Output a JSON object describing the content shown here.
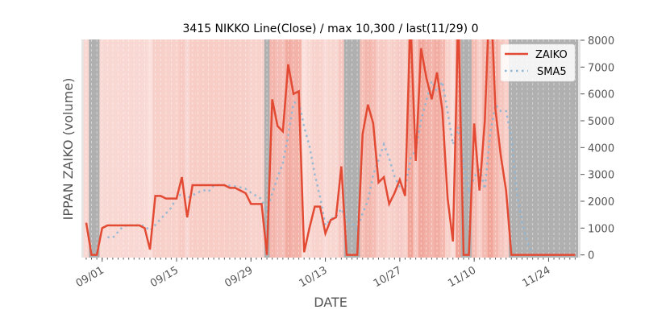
{
  "chart_data": {
    "type": "line",
    "title": "3415 NIKKO Line(Close) / max 10,300 / last(11/29) 0",
    "xlabel": "DATE",
    "ylabel": "IPPAN ZAIKO (volume)",
    "start_date": "08/29",
    "x_unit": "days since 09/01",
    "xlim": [
      -3.9,
      90
    ],
    "ylim": [
      -100,
      8030
    ],
    "yticks": [
      0,
      1000,
      2000,
      3000,
      4000,
      5000,
      6000,
      7000,
      8000
    ],
    "xticks": [
      {
        "day": 0,
        "label": "09/01"
      },
      {
        "day": 14,
        "label": "09/15"
      },
      {
        "day": 28,
        "label": "09/29"
      },
      {
        "day": 42,
        "label": "10/13"
      },
      {
        "day": 56,
        "label": "10/27"
      },
      {
        "day": 70,
        "label": "11/10"
      },
      {
        "day": 84,
        "label": "11/24"
      }
    ],
    "legend": {
      "placement": "top-right",
      "entries": [
        "ZAIKO",
        "SMA5"
      ]
    },
    "series": [
      {
        "name": "ZAIKO",
        "color": "#e24a33",
        "style": "solid",
        "values": [
          1200,
          0,
          0,
          1000,
          1100,
          1100,
          1100,
          1100,
          1100,
          1100,
          1100,
          1000,
          200,
          2200,
          2200,
          2100,
          2100,
          2100,
          2900,
          1400,
          2600,
          2600,
          2600,
          2600,
          2600,
          2600,
          2600,
          2500,
          2500,
          2400,
          2300,
          1900,
          1900,
          1900,
          0,
          5800,
          4800,
          4600,
          7100,
          6000,
          6100,
          100,
          1000,
          1800,
          1800,
          800,
          1300,
          1400,
          3300,
          0,
          0,
          0,
          4500,
          5600,
          4900,
          2700,
          2900,
          1900,
          2300,
          2800,
          2200,
          8800,
          3500,
          7700,
          6600,
          5800,
          6800,
          5400,
          2100,
          500,
          9000,
          0,
          0,
          4900,
          2400,
          5000,
          10300,
          5400,
          3700,
          2400,
          0,
          0,
          0,
          0,
          0,
          0,
          0,
          0,
          0,
          0,
          0,
          0,
          0
        ]
      },
      {
        "name": "SMA5",
        "color": "#8fb6d4",
        "style": "dotted",
        "window": 5
      }
    ],
    "band_colors": {
      "zero": "#b0b0b0",
      "base": "#e24a33"
    }
  }
}
